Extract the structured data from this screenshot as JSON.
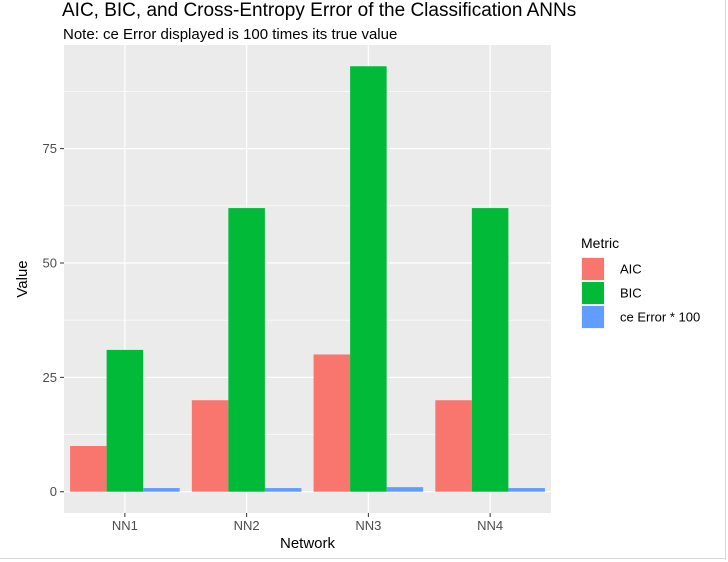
{
  "chart_data": {
    "type": "bar",
    "title": "AIC, BIC, and Cross-Entropy Error of the Classification ANNs",
    "subtitle": "Note: ce Error displayed is 100 times its true value",
    "xlabel": "Network",
    "ylabel": "Value",
    "categories": [
      "NN1",
      "NN2",
      "NN3",
      "NN4"
    ],
    "series": [
      {
        "name": "AIC",
        "color": "#F8766D",
        "values": [
          10,
          20,
          30,
          20
        ]
      },
      {
        "name": "BIC",
        "color": "#00BA38",
        "values": [
          31,
          62,
          93,
          62
        ]
      },
      {
        "name": "ce Error * 100",
        "color": "#619CFF",
        "values": [
          0.8,
          0.8,
          1.0,
          0.8
        ]
      }
    ],
    "yticks": [
      0,
      25,
      50,
      75
    ],
    "ylim": [
      -4.65,
      97.65
    ],
    "grid": true,
    "panel_background": "#EBEBEB",
    "legend": {
      "title": "Metric",
      "position": "right"
    }
  }
}
